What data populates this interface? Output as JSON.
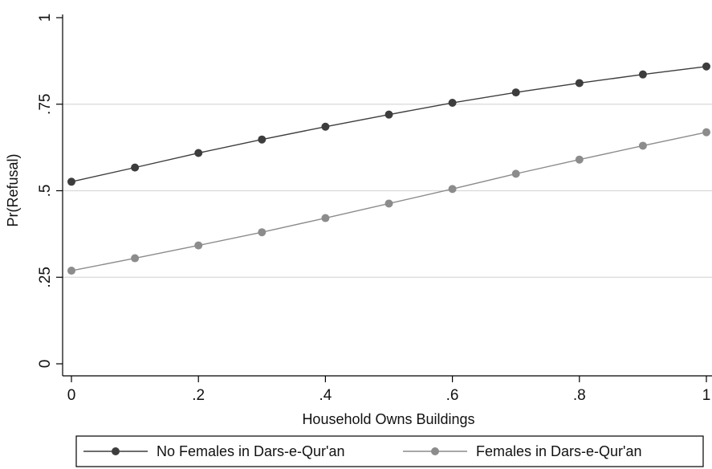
{
  "chart_data": {
    "type": "line",
    "title": "",
    "xlabel": "Household Owns Buildings",
    "ylabel": "Pr(Refusal)",
    "xlim": [
      0,
      1
    ],
    "ylim": [
      0,
      1
    ],
    "x_ticks": [
      {
        "value": 0,
        "label": "0"
      },
      {
        "value": 0.2,
        "label": ".2"
      },
      {
        "value": 0.4,
        "label": ".4"
      },
      {
        "value": 0.6,
        "label": ".6"
      },
      {
        "value": 0.8,
        "label": ".8"
      },
      {
        "value": 1,
        "label": "1"
      }
    ],
    "y_ticks": [
      {
        "value": 0,
        "label": "0"
      },
      {
        "value": 0.25,
        "label": ".25"
      },
      {
        "value": 0.5,
        "label": ".5"
      },
      {
        "value": 0.75,
        "label": ".75"
      },
      {
        "value": 1,
        "label": "1"
      }
    ],
    "grid": true,
    "legend_position": "bottom",
    "x": [
      0,
      0.1,
      0.2,
      0.3,
      0.4,
      0.5,
      0.6,
      0.7,
      0.8,
      0.9,
      1.0
    ],
    "series": [
      {
        "name": "No Females in Dars-e-Qur'an",
        "color": "#3d3d3d",
        "values": [
          0.526,
          0.567,
          0.609,
          0.648,
          0.685,
          0.72,
          0.754,
          0.784,
          0.811,
          0.836,
          0.859
        ]
      },
      {
        "name": "Females in Dars-e-Qur'an",
        "color": "#8c8c8c",
        "values": [
          0.269,
          0.305,
          0.342,
          0.38,
          0.421,
          0.463,
          0.505,
          0.549,
          0.59,
          0.63,
          0.669
        ]
      }
    ]
  }
}
